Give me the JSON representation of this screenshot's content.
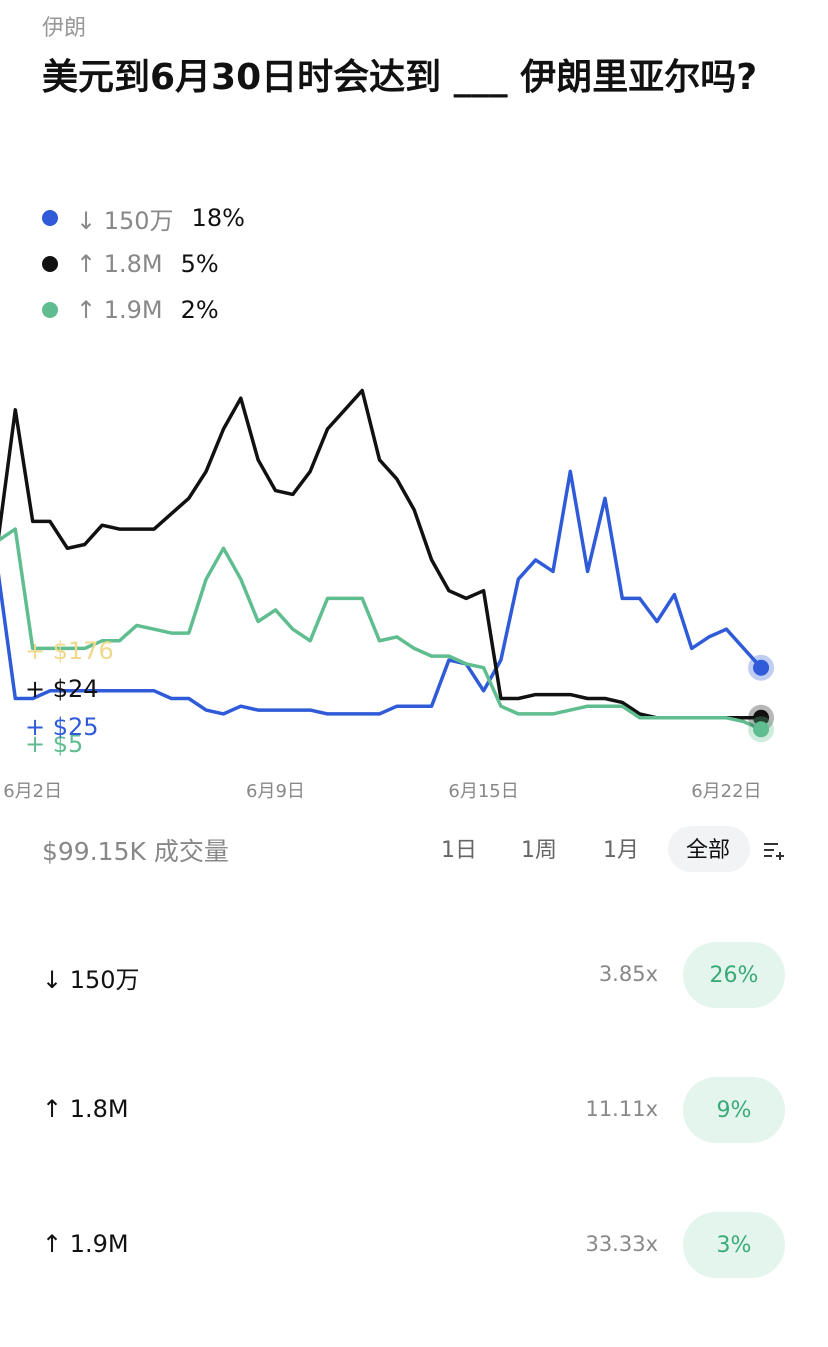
{
  "header": {
    "category": "伊朗",
    "title": "美元到6月30日时会达到 ___ 伊朗里亚尔吗?"
  },
  "chart_data": {
    "type": "line",
    "x": [
      1,
      1.5,
      2,
      2.5,
      3,
      3.5,
      4,
      4.5,
      5,
      5.5,
      6,
      6.5,
      7,
      7.5,
      8,
      8.5,
      9,
      9.5,
      10,
      10.5,
      11,
      11.5,
      12,
      12.5,
      13,
      13.5,
      14,
      14.5,
      15,
      15.5,
      16,
      16.5,
      17,
      17.5,
      18,
      18.5,
      19,
      19.5,
      20,
      20.5,
      21,
      21.5,
      22,
      22.5,
      23
    ],
    "xlim": [
      1,
      23.2
    ],
    "xticks": [
      {
        "value": 2,
        "label": "6月2日"
      },
      {
        "value": 9,
        "label": "6月9日"
      },
      {
        "value": 15,
        "label": "6月15日"
      },
      {
        "value": 22,
        "label": "6月22日"
      }
    ],
    "ylim": [
      0,
      100
    ],
    "series": [
      {
        "name": "↓ 150万",
        "current": "18%",
        "color": "#2f5bd8",
        "values": [
          43,
          10,
          10,
          12,
          12,
          12,
          12,
          12,
          12,
          12,
          10,
          10,
          7,
          6,
          8,
          7,
          7,
          7,
          7,
          6,
          6,
          6,
          6,
          8,
          8,
          8,
          20,
          19,
          12,
          20,
          41,
          46,
          43,
          69,
          43,
          62,
          36,
          36,
          30,
          37,
          23,
          26,
          28,
          23,
          18
        ]
      },
      {
        "name": "↑ 1.8M",
        "current": "5%",
        "color": "#111111",
        "values": [
          51,
          85,
          56,
          56,
          49,
          50,
          55,
          54,
          54,
          54,
          58,
          62,
          69,
          80,
          88,
          72,
          64,
          63,
          69,
          80,
          85,
          90,
          72,
          67,
          59,
          46,
          38,
          36,
          38,
          10,
          10,
          11,
          11,
          11,
          10,
          10,
          9,
          6,
          5,
          5,
          5,
          5,
          5,
          5,
          5
        ]
      },
      {
        "name": "↑ 1.9M",
        "current": "2%",
        "color": "#5fbd8f",
        "values": [
          51,
          54,
          23,
          23,
          23,
          23,
          25,
          25,
          29,
          28,
          27,
          27,
          41,
          49,
          41,
          30,
          33,
          28,
          25,
          36,
          36,
          36,
          25,
          26,
          23,
          21,
          21,
          19,
          18,
          8,
          6,
          6,
          6,
          7,
          8,
          8,
          8,
          5,
          5,
          5,
          5,
          5,
          5,
          4,
          2
        ]
      }
    ],
    "annotations": [
      {
        "text": "+ $176",
        "color": "#efd98a"
      },
      {
        "text": "+ $5",
        "color": "#5fbd8f"
      },
      {
        "text": "+ $24",
        "color": "#111111"
      },
      {
        "text": "+ $25",
        "color": "#2f5bd8"
      }
    ]
  },
  "toolbar": {
    "volume": "$99.15K 成交量",
    "tabs": [
      "1日",
      "1周",
      "1月",
      "全部"
    ]
  },
  "outcomes": [
    {
      "name": "↓ 150万",
      "payout": "3.85x",
      "chance": "26%"
    },
    {
      "name": "↑ 1.8M",
      "payout": "11.11x",
      "chance": "9%"
    },
    {
      "name": "↑ 1.9M",
      "payout": "33.33x",
      "chance": "3%"
    }
  ]
}
